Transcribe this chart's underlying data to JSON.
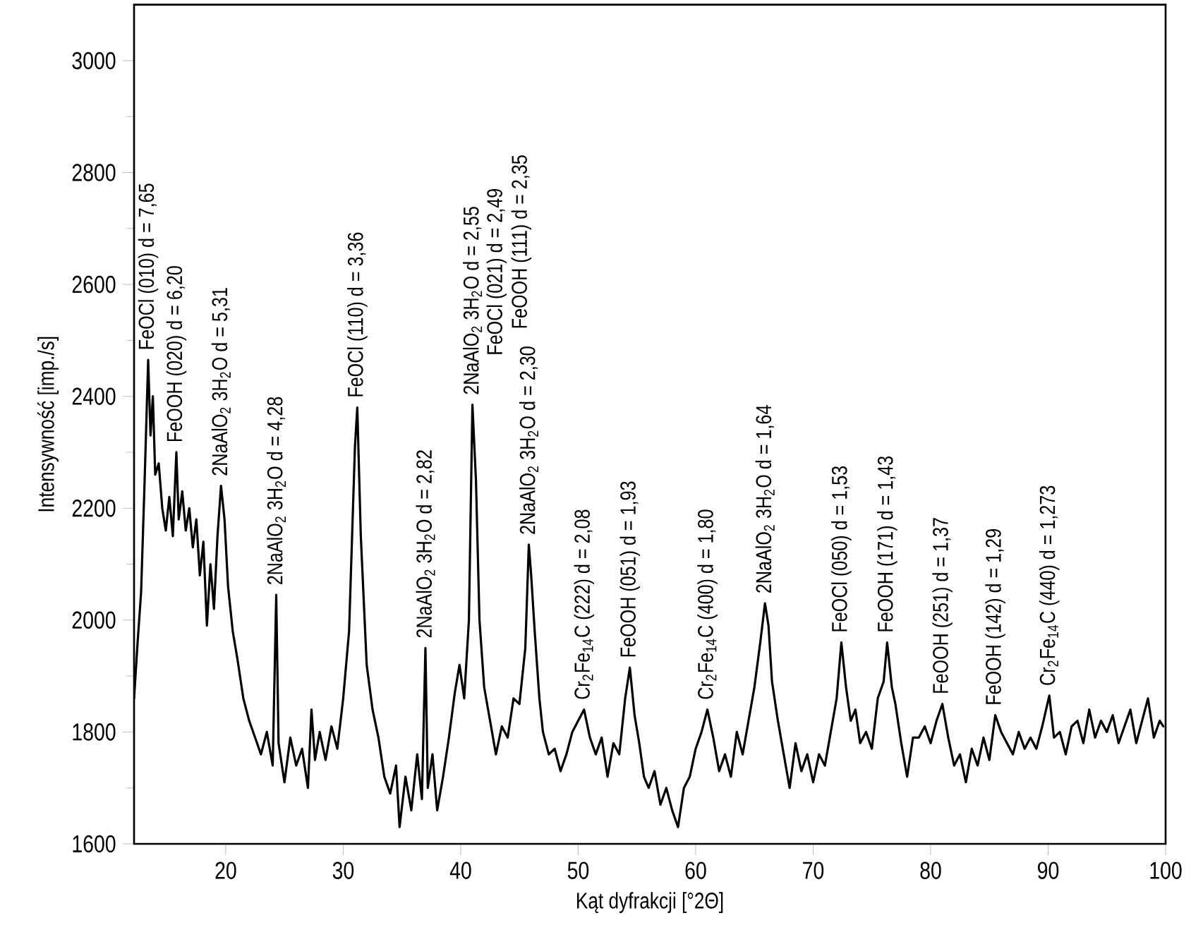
{
  "chart_data": {
    "type": "line",
    "xlabel": "Kąt dyfrakcji  [°2Θ]",
    "ylabel": "Intensywność [imp./s]",
    "xlim": [
      12.2,
      100
    ],
    "ylim": [
      1600,
      3100
    ],
    "xticks": [
      20,
      30,
      40,
      50,
      60,
      70,
      80,
      90,
      100
    ],
    "yticks": [
      1600,
      1800,
      2000,
      2200,
      2400,
      2600,
      2800,
      3000
    ],
    "grid": false,
    "marker": "none",
    "line_style": "solid",
    "series": [
      {
        "color": "#000000",
        "x": [
          12.2,
          12.5,
          12.8,
          13.1,
          13.4,
          13.6,
          13.8,
          14.0,
          14.3,
          14.6,
          14.9,
          15.2,
          15.5,
          15.8,
          16.0,
          16.3,
          16.6,
          16.9,
          17.2,
          17.5,
          17.8,
          18.1,
          18.4,
          18.7,
          19.0,
          19.3,
          19.6,
          19.9,
          20.2,
          20.6,
          21.0,
          21.5,
          22.0,
          22.5,
          23.0,
          23.5,
          24.0,
          24.3,
          24.5,
          25.0,
          25.5,
          26.0,
          26.5,
          27.0,
          27.3,
          27.6,
          28.0,
          28.5,
          29.0,
          29.5,
          30.0,
          30.5,
          31.0,
          31.2,
          31.5,
          32.0,
          32.5,
          33.0,
          33.5,
          34.0,
          34.5,
          34.8,
          35.3,
          35.8,
          36.3,
          36.7,
          37.0,
          37.2,
          37.6,
          38.0,
          38.5,
          39.0,
          39.5,
          39.9,
          40.3,
          40.7,
          41.0,
          41.3,
          41.6,
          42.0,
          42.5,
          43.0,
          43.5,
          44.0,
          44.5,
          45.0,
          45.5,
          45.8,
          46.0,
          46.3,
          46.7,
          47.0,
          47.5,
          48.0,
          48.5,
          49.0,
          49.5,
          50.0,
          50.5,
          51.0,
          51.5,
          52.0,
          52.5,
          53.0,
          53.5,
          54.0,
          54.4,
          54.8,
          55.2,
          55.6,
          56.0,
          56.5,
          57.0,
          57.5,
          58.0,
          58.5,
          59.0,
          59.5,
          60.0,
          60.5,
          61.0,
          61.5,
          62.0,
          62.5,
          63.0,
          63.5,
          64.0,
          64.5,
          65.0,
          65.5,
          65.9,
          66.2,
          66.5,
          67.0,
          67.5,
          68.0,
          68.5,
          69.0,
          69.5,
          70.0,
          70.5,
          71.0,
          71.5,
          72.0,
          72.4,
          72.8,
          73.2,
          73.6,
          74.0,
          74.5,
          75.0,
          75.5,
          76.0,
          76.3,
          76.7,
          77.0,
          77.5,
          78.0,
          78.5,
          79.0,
          79.5,
          80.0,
          80.5,
          81.0,
          81.5,
          82.0,
          82.5,
          83.0,
          83.5,
          84.0,
          84.5,
          85.0,
          85.5,
          86.0,
          86.5,
          87.0,
          87.5,
          88.0,
          88.5,
          89.0,
          89.5,
          90.1,
          90.5,
          91.0,
          91.5,
          92.0,
          92.5,
          93.0,
          93.5,
          94.0,
          94.5,
          95.0,
          95.5,
          96.0,
          96.5,
          97.0,
          97.5,
          98.0,
          98.5,
          99.0,
          99.5,
          99.8
        ],
        "values": [
          1860,
          1960,
          2050,
          2250,
          2465,
          2330,
          2400,
          2260,
          2280,
          2200,
          2160,
          2220,
          2150,
          2300,
          2180,
          2230,
          2160,
          2200,
          2130,
          2180,
          2080,
          2140,
          1990,
          2100,
          2020,
          2150,
          2240,
          2180,
          2060,
          1980,
          1930,
          1860,
          1820,
          1790,
          1760,
          1800,
          1740,
          2045,
          1780,
          1710,
          1790,
          1740,
          1770,
          1700,
          1840,
          1750,
          1800,
          1750,
          1810,
          1770,
          1860,
          1980,
          2310,
          2380,
          2150,
          1920,
          1840,
          1790,
          1720,
          1690,
          1740,
          1630,
          1720,
          1660,
          1760,
          1680,
          1950,
          1700,
          1760,
          1660,
          1720,
          1790,
          1870,
          1920,
          1860,
          2000,
          2385,
          2250,
          2000,
          1880,
          1820,
          1760,
          1810,
          1790,
          1860,
          1850,
          1950,
          2135,
          2080,
          1980,
          1860,
          1800,
          1760,
          1770,
          1730,
          1760,
          1800,
          1820,
          1840,
          1790,
          1760,
          1790,
          1720,
          1780,
          1760,
          1860,
          1915,
          1830,
          1780,
          1720,
          1700,
          1730,
          1670,
          1700,
          1660,
          1630,
          1700,
          1720,
          1770,
          1800,
          1840,
          1790,
          1730,
          1760,
          1720,
          1800,
          1760,
          1820,
          1880,
          1960,
          2030,
          1990,
          1890,
          1820,
          1760,
          1700,
          1780,
          1730,
          1760,
          1710,
          1760,
          1740,
          1800,
          1860,
          1960,
          1880,
          1820,
          1840,
          1780,
          1800,
          1770,
          1860,
          1890,
          1960,
          1880,
          1850,
          1780,
          1720,
          1790,
          1790,
          1810,
          1780,
          1820,
          1850,
          1790,
          1740,
          1760,
          1710,
          1770,
          1740,
          1790,
          1750,
          1830,
          1800,
          1780,
          1760,
          1800,
          1770,
          1790,
          1770,
          1810,
          1865,
          1790,
          1800,
          1760,
          1810,
          1820,
          1780,
          1840,
          1790,
          1820,
          1800,
          1830,
          1780,
          1810,
          1840,
          1780,
          1820,
          1860,
          1790,
          1820,
          1810
        ]
      }
    ],
    "annotations": [
      {
        "text": "FeOCl (010) d = 7,65",
        "x": 13.4,
        "y": 2465
      },
      {
        "text": "FeOOH (020) d = 6,20",
        "x": 15.8,
        "y": 2300
      },
      {
        "text": "2NaAlO$_{2}$  3H$_{2}$O  d = 5,31",
        "x": 19.6,
        "y": 2240
      },
      {
        "text": "2NaAlO$_{2}$  3H$_{2}$O  d = 4,28",
        "x": 24.3,
        "y": 2045
      },
      {
        "text": "FeOCl (110) d = 3,36",
        "x": 31.2,
        "y": 2380
      },
      {
        "text": "2NaAlO$_{2}$  3H$_{2}$O  d = 2,82",
        "x": 37.0,
        "y": 1950
      },
      {
        "text": "2NaAlO$_{2}$  3H$_{2}$O  d = 2,55",
        "x": 41.0,
        "y": 2385
      },
      "FeOCl (021) d = 2,49",
      "FeOOH (111) d = 2,35",
      {
        "text": "2NaAlO$_{2}$  3H$_{2}$O  d = 2,30",
        "x": 45.8,
        "y": 2135
      },
      {
        "text": "Cr$_{2}$Fe$_{14}$C  (222)  d = 2,08",
        "x": 50.5,
        "y": 1840
      },
      {
        "text": "FeOOH (051) d = 1,93",
        "x": 54.4,
        "y": 1915
      },
      {
        "text": "Cr$_{2}$Fe$_{14}$C  (400)  d = 1,80",
        "x": 61.0,
        "y": 1840
      },
      {
        "text": "2NaAlO$_{2}$  3H$_{2}$O  d = 1,64",
        "x": 65.9,
        "y": 2030
      },
      {
        "text": "FeOCl (050) d = 1,53",
        "x": 72.4,
        "y": 1960
      },
      {
        "text": "FeOOH (171) d = 1,43",
        "x": 76.3,
        "y": 1960
      },
      {
        "text": "FeOOH (251) d = 1,37",
        "x": 81.0,
        "y": 1850
      },
      {
        "text": "FeOOH (142) d = 1,29",
        "x": 85.5,
        "y": 1830
      },
      {
        "text": "Cr$_{2}$Fe$_{14}$C  (440)  d = 1,273",
        "x": 90.1,
        "y": 1865
      }
    ]
  }
}
